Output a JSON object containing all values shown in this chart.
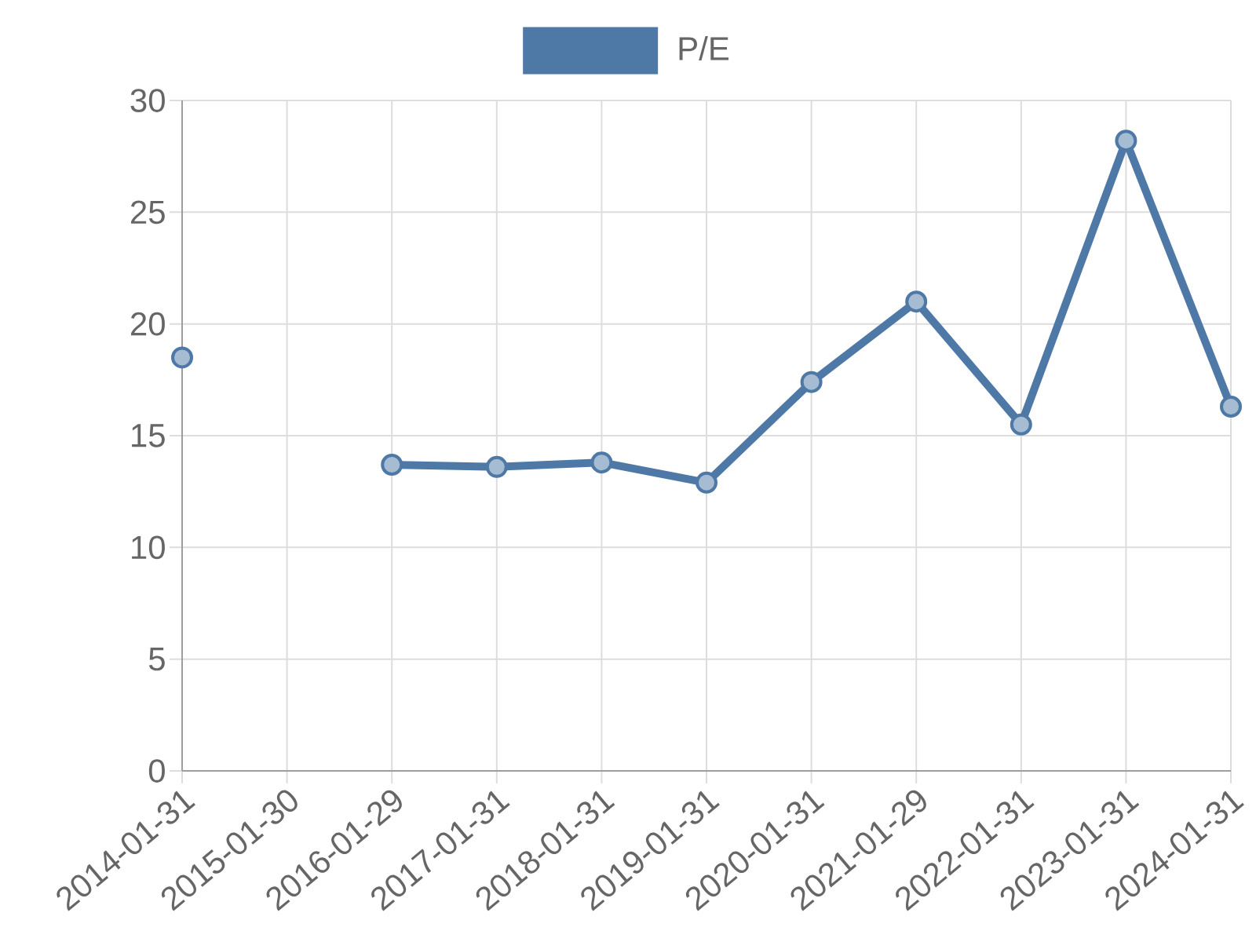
{
  "chart_data": {
    "type": "line",
    "categories": [
      "2014-01-31",
      "2015-01-30",
      "2016-01-29",
      "2017-01-31",
      "2018-01-31",
      "2019-01-31",
      "2020-01-31",
      "2021-01-29",
      "2022-01-31",
      "2023-01-31",
      "2024-01-31"
    ],
    "series": [
      {
        "name": "P/E",
        "color": "#4e79a7",
        "values": [
          18.5,
          null,
          13.7,
          13.6,
          13.8,
          12.9,
          17.4,
          21.0,
          15.5,
          28.2,
          16.3
        ]
      }
    ],
    "ylim": [
      0,
      30
    ],
    "yticks": [
      0,
      5,
      10,
      15,
      20,
      25,
      30
    ],
    "grid": true,
    "legend": "top",
    "marker": "circle",
    "line_style": "solid"
  }
}
